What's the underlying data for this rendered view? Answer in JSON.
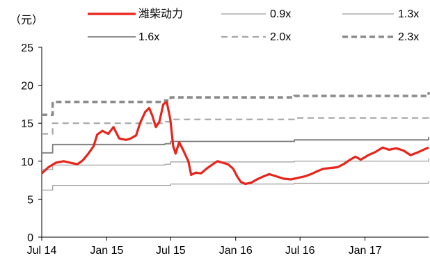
{
  "chart_data": {
    "type": "line",
    "unit_label": "（元）",
    "ylim": [
      0,
      25
    ],
    "yticks": [
      0,
      5,
      10,
      15,
      20,
      25
    ],
    "xticks": [
      {
        "label": "Jul 14",
        "date": "2014-07-01"
      },
      {
        "label": "Jan 15",
        "date": "2015-01-01"
      },
      {
        "label": "Jul 15",
        "date": "2015-07-01"
      },
      {
        "label": "Jan 16",
        "date": "2016-01-01"
      },
      {
        "label": "Jul 16",
        "date": "2016-07-01"
      },
      {
        "label": "Jan 17",
        "date": "2017-01-01"
      }
    ],
    "x_range": [
      "2014-07-01",
      "2017-06-30"
    ],
    "grid": false,
    "legend_position": "top",
    "series": [
      {
        "name": "潍柴动力",
        "color": "#e8231a",
        "style": "solid-thick",
        "points": [
          [
            "2014-07-01",
            8.4
          ],
          [
            "2014-07-20",
            9.2
          ],
          [
            "2014-08-10",
            9.8
          ],
          [
            "2014-09-01",
            10.0
          ],
          [
            "2014-09-20",
            9.8
          ],
          [
            "2014-10-10",
            9.6
          ],
          [
            "2014-10-25",
            10.1
          ],
          [
            "2014-11-10",
            11.0
          ],
          [
            "2014-11-25",
            12.0
          ],
          [
            "2014-12-05",
            13.5
          ],
          [
            "2014-12-20",
            14.0
          ],
          [
            "2015-01-05",
            13.6
          ],
          [
            "2015-01-20",
            14.5
          ],
          [
            "2015-02-05",
            13.0
          ],
          [
            "2015-02-25",
            12.8
          ],
          [
            "2015-03-10",
            13.0
          ],
          [
            "2015-03-25",
            13.4
          ],
          [
            "2015-04-05",
            15.0
          ],
          [
            "2015-04-20",
            16.5
          ],
          [
            "2015-05-01",
            17.0
          ],
          [
            "2015-05-10",
            16.0
          ],
          [
            "2015-05-20",
            14.5
          ],
          [
            "2015-05-30",
            15.2
          ],
          [
            "2015-06-10",
            17.5
          ],
          [
            "2015-06-20",
            17.8
          ],
          [
            "2015-06-30",
            15.5
          ],
          [
            "2015-07-08",
            12.0
          ],
          [
            "2015-07-15",
            11.0
          ],
          [
            "2015-07-25",
            12.5
          ],
          [
            "2015-08-05",
            11.5
          ],
          [
            "2015-08-20",
            10.0
          ],
          [
            "2015-08-28",
            8.2
          ],
          [
            "2015-09-10",
            8.5
          ],
          [
            "2015-09-25",
            8.4
          ],
          [
            "2015-10-10",
            9.0
          ],
          [
            "2015-10-25",
            9.5
          ],
          [
            "2015-11-10",
            10.0
          ],
          [
            "2015-11-25",
            9.8
          ],
          [
            "2015-12-10",
            9.6
          ],
          [
            "2015-12-25",
            9.0
          ],
          [
            "2016-01-05",
            8.0
          ],
          [
            "2016-01-15",
            7.3
          ],
          [
            "2016-01-28",
            7.0
          ],
          [
            "2016-02-15",
            7.2
          ],
          [
            "2016-03-01",
            7.6
          ],
          [
            "2016-03-20",
            8.0
          ],
          [
            "2016-04-05",
            8.3
          ],
          [
            "2016-04-25",
            8.0
          ],
          [
            "2016-05-15",
            7.7
          ],
          [
            "2016-06-05",
            7.6
          ],
          [
            "2016-06-25",
            7.8
          ],
          [
            "2016-07-15",
            8.0
          ],
          [
            "2016-08-01",
            8.3
          ],
          [
            "2016-08-20",
            8.7
          ],
          [
            "2016-09-05",
            9.0
          ],
          [
            "2016-09-25",
            9.1
          ],
          [
            "2016-10-15",
            9.2
          ],
          [
            "2016-11-01",
            9.6
          ],
          [
            "2016-11-20",
            10.2
          ],
          [
            "2016-12-05",
            10.6
          ],
          [
            "2016-12-20",
            10.2
          ],
          [
            "2017-01-10",
            10.8
          ],
          [
            "2017-01-30",
            11.2
          ],
          [
            "2017-02-20",
            11.8
          ],
          [
            "2017-03-10",
            11.5
          ],
          [
            "2017-03-30",
            11.7
          ],
          [
            "2017-04-20",
            11.4
          ],
          [
            "2017-05-10",
            10.8
          ],
          [
            "2017-06-01",
            11.2
          ],
          [
            "2017-06-30",
            11.8
          ]
        ]
      },
      {
        "name": "0.9x",
        "color": "#9a9a9a",
        "style": "solid-thin",
        "points": [
          [
            "2014-07-01",
            6.2
          ],
          [
            "2014-08-01",
            6.8
          ],
          [
            "2015-06-15",
            6.8
          ],
          [
            "2015-07-01",
            7.0
          ],
          [
            "2016-06-15",
            7.1
          ],
          [
            "2017-06-30",
            7.4
          ]
        ]
      },
      {
        "name": "1.3x",
        "color": "#9a9a9a",
        "style": "solid-thin",
        "points": [
          [
            "2014-07-01",
            8.9
          ],
          [
            "2014-08-01",
            9.5
          ],
          [
            "2015-06-15",
            9.6
          ],
          [
            "2015-07-01",
            9.9
          ],
          [
            "2016-06-15",
            10.0
          ],
          [
            "2017-06-30",
            10.4
          ]
        ]
      },
      {
        "name": "1.6x",
        "color": "#7f7f7f",
        "style": "solid-medium",
        "points": [
          [
            "2014-07-01",
            11.1
          ],
          [
            "2014-08-01",
            12.2
          ],
          [
            "2015-06-15",
            12.3
          ],
          [
            "2015-07-01",
            12.6
          ],
          [
            "2016-06-15",
            12.8
          ],
          [
            "2017-06-30",
            13.2
          ]
        ]
      },
      {
        "name": "2.0x",
        "color": "#a6a6a6",
        "style": "dashed",
        "points": [
          [
            "2014-07-01",
            13.6
          ],
          [
            "2014-08-01",
            15.0
          ],
          [
            "2015-06-15",
            15.2
          ],
          [
            "2015-07-01",
            15.5
          ],
          [
            "2016-06-15",
            15.7
          ],
          [
            "2017-06-30",
            16.2
          ]
        ]
      },
      {
        "name": "2.3x",
        "color": "#8c8c8c",
        "style": "dashed-thick",
        "points": [
          [
            "2014-07-01",
            16.1
          ],
          [
            "2014-08-01",
            17.8
          ],
          [
            "2015-06-15",
            18.0
          ],
          [
            "2015-07-01",
            18.4
          ],
          [
            "2016-06-15",
            18.6
          ],
          [
            "2017-06-30",
            19.1
          ]
        ]
      }
    ]
  }
}
